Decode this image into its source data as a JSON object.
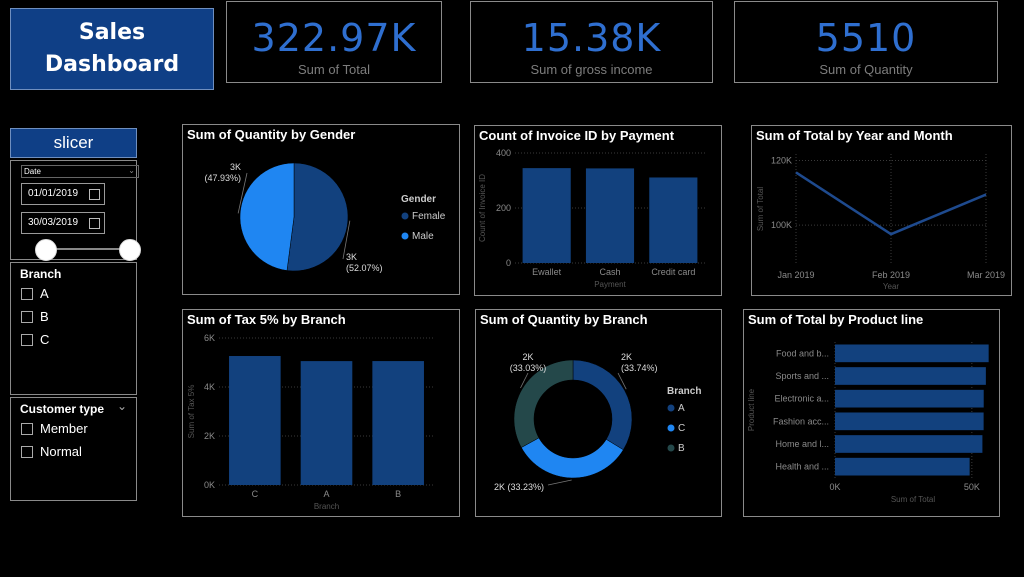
{
  "header": {
    "title_line1": "Sales",
    "title_line2": "Dashboard"
  },
  "cards": [
    {
      "value": "322.97K",
      "label": "Sum of Total"
    },
    {
      "value": "15.38K",
      "label": "Sum of gross income"
    },
    {
      "value": "5510",
      "label": "Sum of Quantity"
    }
  ],
  "slicer": {
    "title": "slicer",
    "date_field": "Date",
    "start_date": "01/01/2019",
    "end_date": "30/03/2019",
    "range_start_fraction": 0,
    "range_end_fraction": 1
  },
  "branch_filter": {
    "title": "Branch",
    "items": [
      "A",
      "B",
      "C"
    ]
  },
  "customer_filter": {
    "title": "Customer type",
    "items": [
      "Member",
      "Normal"
    ]
  },
  "colors": {
    "primary": "#12417e",
    "bright": "#1f86f2",
    "teal": "#24484a",
    "title_bg": "#0f3f86"
  },
  "chart_data": [
    {
      "id": "gender_pie",
      "type": "pie",
      "title": "Sum of Quantity by Gender",
      "legend_title": "Gender",
      "legend_position": "right",
      "categories": [
        "Female",
        "Male"
      ],
      "values": [
        2869,
        2641
      ],
      "data_labels": [
        "3K\n(52.07%)",
        "3K\n(47.93%)"
      ],
      "colors": [
        "#12417e",
        "#1f86f2"
      ]
    },
    {
      "id": "payment_bar",
      "type": "bar",
      "title": "Count of Invoice ID by Payment",
      "categories": [
        "Ewallet",
        "Cash",
        "Credit card"
      ],
      "values": [
        345,
        344,
        311
      ],
      "xlabel": "Payment",
      "ylabel": "Count of Invoice ID",
      "ylim": [
        0,
        400
      ],
      "yticks": [
        0,
        200,
        400
      ],
      "ytick_labels": [
        "0",
        "200",
        "400"
      ],
      "grid": true
    },
    {
      "id": "total_line",
      "type": "line",
      "title": "Sum of Total by Year and Month",
      "categories": [
        "Jan 2019",
        "Feb 2019",
        "Mar 2019"
      ],
      "values": [
        116292,
        97219,
        109456
      ],
      "xlabel": "Year",
      "ylabel": "Sum of Total",
      "ylim": [
        88000,
        122000
      ],
      "yticks": [
        100000,
        120000
      ],
      "ytick_labels": [
        "100K",
        "120K"
      ],
      "grid": true
    },
    {
      "id": "tax_bar",
      "type": "bar",
      "title": "Sum of Tax 5% by Branch",
      "categories": [
        "C",
        "A",
        "B"
      ],
      "values": [
        5265,
        5057,
        5058
      ],
      "xlabel": "Branch",
      "ylabel": "Sum of Tax 5%",
      "ylim": [
        0,
        6000
      ],
      "yticks": [
        0,
        2000,
        4000,
        6000
      ],
      "ytick_labels": [
        "0K",
        "2K",
        "4K",
        "6K"
      ],
      "grid": true
    },
    {
      "id": "branch_donut",
      "type": "pie",
      "title": "Sum of Quantity by Branch",
      "legend_title": "Branch",
      "legend_position": "right",
      "categories": [
        "A",
        "C",
        "B"
      ],
      "values": [
        1859,
        1831,
        1820
      ],
      "data_labels": [
        "2K\n(33.74%)",
        "2K (33.23%)",
        "2K\n(33.03%)"
      ],
      "colors": [
        "#12417e",
        "#1f86f2",
        "#24484a"
      ]
    },
    {
      "id": "product_bar",
      "type": "bar",
      "orientation": "horizontal",
      "title": "Sum of Total by Product line",
      "categories": [
        "Food and b...",
        "Sports and ...",
        "Electronic a...",
        "Fashion acc...",
        "Home and l...",
        "Health and ..."
      ],
      "values": [
        56145,
        55123,
        54338,
        54306,
        53862,
        49194
      ],
      "xlabel": "Sum of Total",
      "ylabel": "Product line",
      "xlim": [
        0,
        57000
      ],
      "xticks": [
        0,
        50000
      ],
      "xtick_labels": [
        "0K",
        "50K"
      ],
      "grid": true
    }
  ]
}
